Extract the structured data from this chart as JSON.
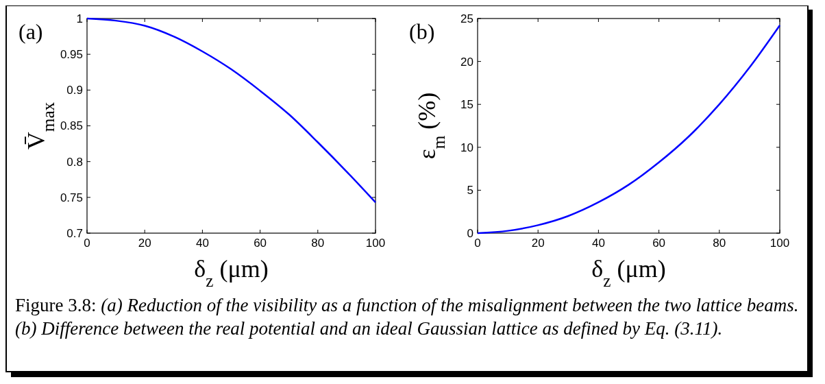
{
  "chart_data": [
    {
      "type": "line",
      "title": "(a)",
      "xlabel": "δ$_{z}$ (μm)",
      "ylabel": "V̄$_{max}$",
      "xlim": [
        0,
        100
      ],
      "ylim": [
        0.7,
        1
      ],
      "xticks": [
        0,
        20,
        40,
        60,
        80,
        100
      ],
      "yticks": [
        0.7,
        0.75,
        0.8,
        0.85,
        0.9,
        0.95,
        1
      ],
      "x": [
        0,
        10,
        20,
        30,
        40,
        50,
        60,
        70,
        80,
        90,
        100
      ],
      "series": [
        {
          "color": "#0000ff",
          "values": [
            1,
            0.997,
            0.99,
            0.975,
            0.954,
            0.929,
            0.899,
            0.866,
            0.827,
            0.786,
            0.743
          ]
        }
      ]
    },
    {
      "type": "line",
      "title": "(b)",
      "xlabel": "δ$_{z}$ (μm)",
      "ylabel": "ε$_{m}$ (%)",
      "xlim": [
        0,
        100
      ],
      "ylim": [
        0,
        25
      ],
      "xticks": [
        0,
        20,
        40,
        60,
        80,
        100
      ],
      "yticks": [
        0,
        5,
        10,
        15,
        20,
        25
      ],
      "x": [
        0,
        10,
        20,
        30,
        40,
        50,
        60,
        70,
        80,
        90,
        100
      ],
      "series": [
        {
          "color": "#0000ff",
          "values": [
            0,
            0.27,
            0.93,
            2.0,
            3.6,
            5.64,
            8.24,
            11.3,
            15.0,
            19.3,
            24.2
          ]
        }
      ],
      "annotations": [
        "Figure 3.8: (a) Reduction of the visibility as a function of the misalignment between the two lattice beams. (b) Difference between the real potential and an ideal Gaussian lattice as defined by Eq. (3.11)."
      ]
    }
  ]
}
